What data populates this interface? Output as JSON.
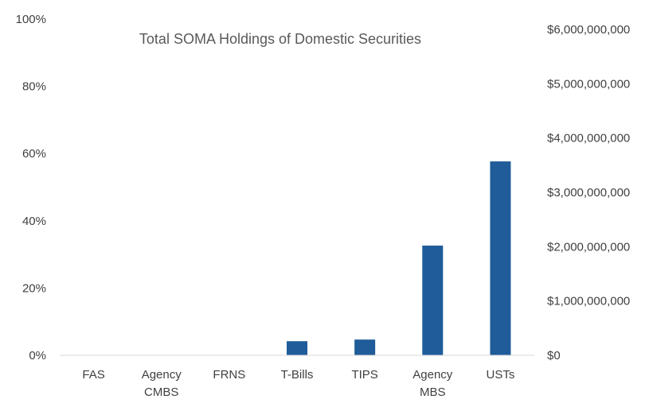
{
  "chart_data": {
    "type": "bar",
    "title": "Total SOMA Holdings of Domestic Securities",
    "categories": [
      [
        "FAS"
      ],
      [
        "Agency",
        "CMBS"
      ],
      [
        "FRNS"
      ],
      [
        "T-Bills"
      ],
      [
        "TIPS"
      ],
      [
        "Agency",
        "MBS"
      ],
      [
        "USTs"
      ]
    ],
    "series": [
      {
        "values": [
          0,
          0,
          0,
          260000000,
          290000000,
          2020000000,
          3570000000
        ]
      }
    ],
    "y_left": {
      "ticks": [
        "0%",
        "20%",
        "40%",
        "60%",
        "80%",
        "100%"
      ],
      "tick_values": [
        0,
        20,
        40,
        60,
        80,
        100
      ],
      "ylim": [
        0,
        100
      ]
    },
    "y_right": {
      "ticks": [
        "$0",
        "$1,000,000,000",
        "$2,000,000,000",
        "$3,000,000,000",
        "$4,000,000,000",
        "$5,000,000,000",
        "$6,000,000,000"
      ],
      "tick_values": [
        0,
        1000000000,
        2000000000,
        3000000000,
        4000000000,
        5000000000,
        6000000000
      ],
      "ylim": [
        0,
        6000000000
      ]
    },
    "grid": false,
    "legend": "none",
    "colors": {
      "bar": "#1F5C99",
      "axis": "#D9D9D9",
      "text": "#404040",
      "title": "#595959"
    }
  }
}
